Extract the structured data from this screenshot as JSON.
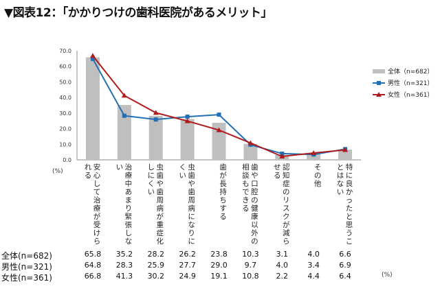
{
  "title": "▼図表12：「かかりつけの歯科医院があるメリット」",
  "chart_data": {
    "type": "bar",
    "ylim": [
      0,
      70
    ],
    "yticks": [
      "0.0",
      "10.0",
      "20.0",
      "30.0",
      "40.0",
      "50.0",
      "60.0",
      "70.0"
    ],
    "y_unit": "(%)",
    "table_unit": "(%)",
    "categories": [
      "安心して治療が受けられる",
      "治療中あまり緊張しない",
      "虫歯や歯周病が重症化しにくい",
      "虫歯や歯周病になりにくい",
      "歯が長持ちする",
      "歯や口腔の健康以外の相談もできる",
      "認知症のリスクが減らせる",
      "その他",
      "特に良かったと思うことはない"
    ],
    "series": [
      {
        "name": "全体(n=682)",
        "kind": "bar",
        "color": "#bfbfbf",
        "values": [
          65.8,
          35.2,
          28.2,
          26.2,
          23.8,
          10.3,
          3.1,
          4.0,
          6.6
        ]
      },
      {
        "name": "男性(n=321)",
        "kind": "line",
        "color": "#1f6fb4",
        "values": [
          64.8,
          28.3,
          25.9,
          27.7,
          29.0,
          9.7,
          4.0,
          3.4,
          6.9
        ]
      },
      {
        "name": "女性(n=361)",
        "kind": "line",
        "color": "#b01c1c",
        "values": [
          66.8,
          41.3,
          30.2,
          24.9,
          19.1,
          10.8,
          2.2,
          4.4,
          6.4
        ]
      }
    ],
    "legend": [
      {
        "label": "全体（n=682）",
        "marker": "bar"
      },
      {
        "label": "男性（n=321）",
        "marker": "square"
      },
      {
        "label": "女性（n=361）",
        "marker": "triangle"
      }
    ],
    "table_rows": [
      {
        "label": "全体(n=682)",
        "values": [
          "65.8",
          "35.2",
          "28.2",
          "26.2",
          "23.8",
          "10.3",
          "3.1",
          "4.0",
          "6.6"
        ]
      },
      {
        "label": "男性(n=321)",
        "values": [
          "64.8",
          "28.3",
          "25.9",
          "27.7",
          "29.0",
          "9.7",
          "4.0",
          "3.4",
          "6.9"
        ]
      },
      {
        "label": "女性(n=361)",
        "values": [
          "66.8",
          "41.3",
          "30.2",
          "24.9",
          "19.1",
          "10.8",
          "2.2",
          "4.4",
          "6.4"
        ]
      }
    ]
  }
}
